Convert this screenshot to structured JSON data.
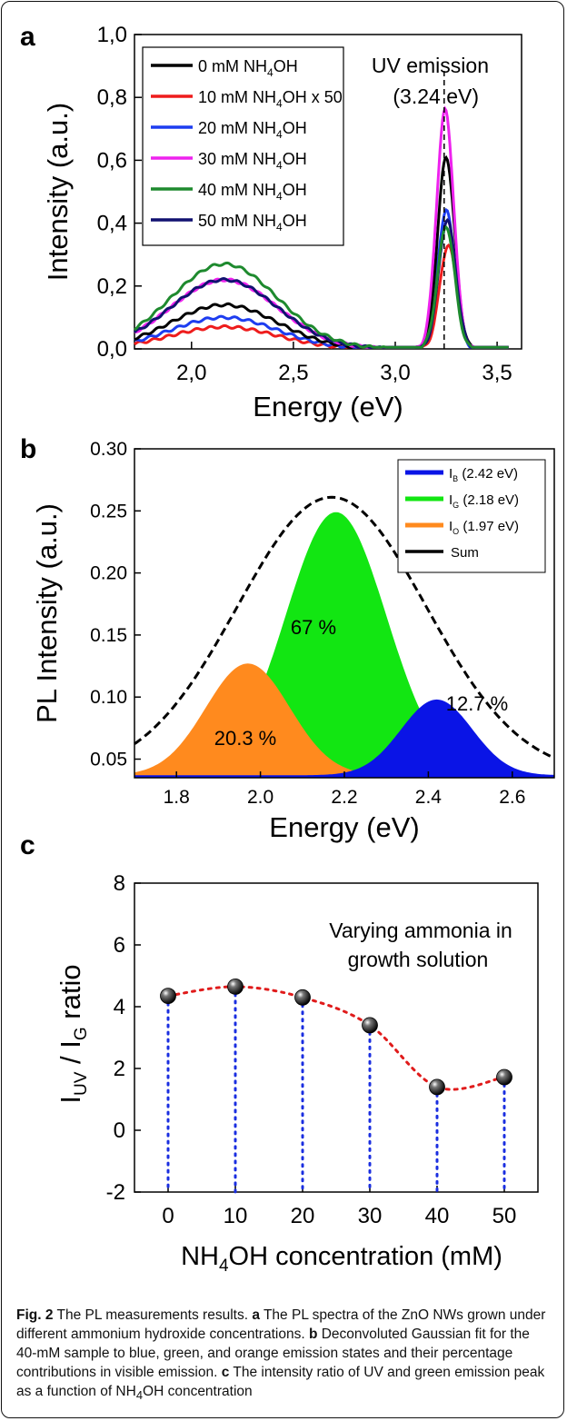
{
  "figure": {
    "panels": [
      {
        "letter": "a"
      },
      {
        "letter": "b"
      },
      {
        "letter": "c"
      }
    ]
  },
  "chart_data": [
    {
      "panel": "a",
      "type": "line",
      "xlabel": "Energy (eV)",
      "ylabel": "Intensity (a.u.)",
      "xlim": [
        1.72,
        3.62
      ],
      "ylim": [
        0.0,
        1.0
      ],
      "xticks": [
        "2,0",
        "2,5",
        "3,0",
        "3,5"
      ],
      "xtick_values": [
        2.0,
        2.5,
        3.0,
        3.5
      ],
      "yticks": [
        "0,0",
        "0,2",
        "0,4",
        "0,6",
        "0,8",
        "1,0"
      ],
      "ytick_values": [
        0.0,
        0.2,
        0.4,
        0.6,
        0.8,
        1.0
      ],
      "annotation": {
        "line1": "UV emission",
        "line2": "(3.24 eV)",
        "x": 3.24
      },
      "legend_position": "top-left",
      "series": [
        {
          "name": "0 mM NH4OH",
          "label_pre": "0 mM NH",
          "label_sub": "4",
          "label_post": "OH",
          "color": "#000000",
          "visible_peak": 0.14,
          "uv_peak": 0.61
        },
        {
          "name": "10 mM NH4OH x 50",
          "label_pre": "10 mM NH",
          "label_sub": "4",
          "label_post": "OH x 50",
          "color": "#ee1c1c",
          "visible_peak": 0.07,
          "uv_peak": 0.33
        },
        {
          "name": "20 mM NH4OH",
          "label_pre": "20 mM NH",
          "label_sub": "4",
          "label_post": "OH",
          "color": "#1d3df0",
          "visible_peak": 0.1,
          "uv_peak": 0.44
        },
        {
          "name": "30 mM NH4OH",
          "label_pre": "30 mM NH",
          "label_sub": "4",
          "label_post": "OH",
          "color": "#ee22ee",
          "visible_peak": 0.22,
          "uv_peak": 0.76
        },
        {
          "name": "40 mM NH4OH",
          "label_pre": "40 mM NH",
          "label_sub": "4",
          "label_post": "OH",
          "color": "#1e8a2e",
          "visible_peak": 0.27,
          "uv_peak": 0.39
        },
        {
          "name": "50 mM NH4OH",
          "label_pre": "50 mM NH",
          "label_sub": "4",
          "label_post": "OH",
          "color": "#111170",
          "visible_peak": 0.22,
          "uv_peak": 0.41
        }
      ]
    },
    {
      "panel": "b",
      "type": "area",
      "xlabel": "Energy (eV)",
      "ylabel": "PL Intensity (a.u.)",
      "xlim": [
        1.7,
        2.7
      ],
      "ylim": [
        0.035,
        0.3
      ],
      "xticks": [
        "1.8",
        "2.0",
        "2.2",
        "2.4",
        "2.6"
      ],
      "xtick_values": [
        1.8,
        2.0,
        2.2,
        2.4,
        2.6
      ],
      "yticks": [
        "0.05",
        "0.10",
        "0.15",
        "0.20",
        "0.25",
        "0.30"
      ],
      "ytick_values": [
        0.05,
        0.1,
        0.15,
        0.2,
        0.25,
        0.3
      ],
      "baseline": 0.037,
      "legend_position": "top-right",
      "components": [
        {
          "name": "IB (2.42 eV)",
          "sym": "I",
          "sub": "B",
          "post": "(2.42 eV)",
          "color": "#0a14e6",
          "center": 2.42,
          "peak": 0.098,
          "sigma": 0.085,
          "share": "12.7 %"
        },
        {
          "name": "IG (2.18 eV)",
          "sym": "I",
          "sub": "G",
          "post": "(2.18 eV)",
          "color": "#12e612",
          "center": 2.18,
          "peak": 0.249,
          "sigma": 0.12,
          "share": "67 %"
        },
        {
          "name": "IO (1.97 eV)",
          "sym": "I",
          "sub": "O",
          "post": "(1.97 eV)",
          "color": "#ff8a1e",
          "center": 1.97,
          "peak": 0.127,
          "sigma": 0.1,
          "share": "20.3 %"
        }
      ],
      "sum": {
        "name": "Sum",
        "color": "#000000",
        "peak": 0.261,
        "center": 2.17
      }
    },
    {
      "panel": "c",
      "type": "scatter",
      "xlabel": {
        "pre": "NH",
        "sub": "4",
        "post": "OH concentration (mM)"
      },
      "ylabel": {
        "sym1": "I",
        "sub1": "UV",
        "mid": " / I",
        "sub2": "G",
        "post": " ratio"
      },
      "xlim": [
        -5,
        55
      ],
      "ylim": [
        -2,
        8
      ],
      "xticks": [
        "0",
        "10",
        "20",
        "30",
        "40",
        "50"
      ],
      "xtick_values": [
        0,
        10,
        20,
        30,
        40,
        50
      ],
      "yticks": [
        "-2",
        "0",
        "2",
        "4",
        "6",
        "8"
      ],
      "ytick_values": [
        -2,
        0,
        2,
        4,
        6,
        8
      ],
      "annotation": {
        "line1": "Varying ammonia in",
        "line2": "growth solution"
      },
      "x": [
        0,
        10,
        20,
        30,
        40,
        50
      ],
      "y": [
        4.35,
        4.65,
        4.3,
        3.4,
        1.4,
        1.72
      ],
      "trend_color": "#e01b1b",
      "drop_color": "#1a2ee0"
    }
  ],
  "caption": {
    "fig_label": "Fig. 2",
    "text1": " The PL measurements results. ",
    "a_label": "a",
    "text_a": " The PL spectra of the ZnO NWs grown under different ammonium hydroxide concentrations. ",
    "b_label": "b",
    "text_b": " Deconvoluted Gaussian fit for the 40-mM sample to blue, green, and orange emission states and their percentage contributions in visible emission. ",
    "c_label": "c",
    "text_c_pre": " The intensity ratio of UV and green emission peak as a function of NH",
    "text_c_sub": "4",
    "text_c_post": "OH concentration"
  }
}
